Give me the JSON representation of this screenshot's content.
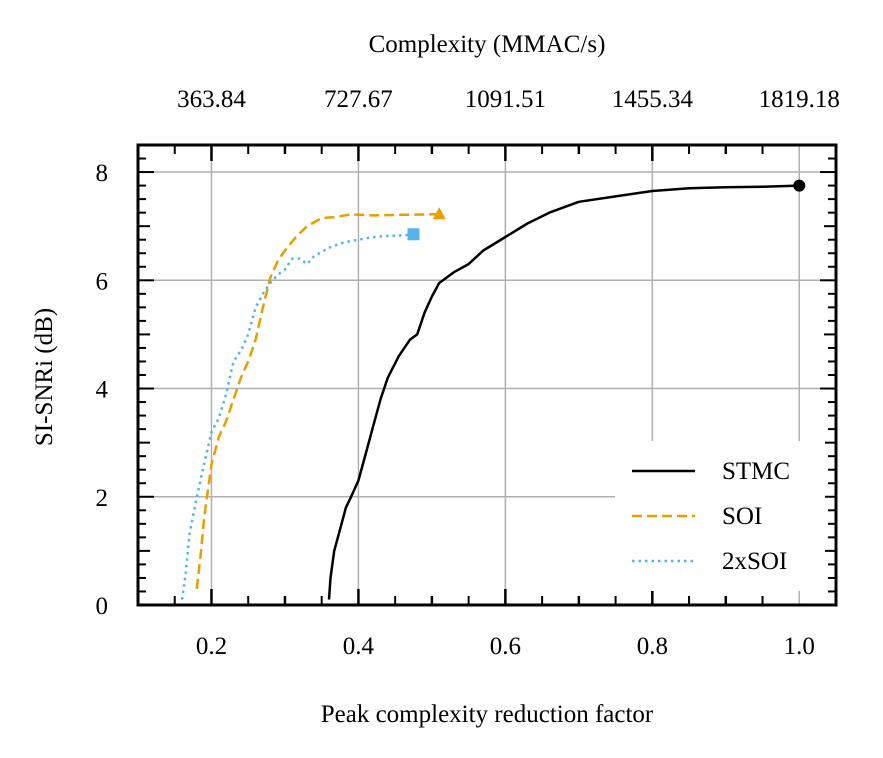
{
  "chart_data": {
    "type": "line",
    "xlabel": "Peak complexity reduction factor",
    "ylabel": "SI-SNRi (dB)",
    "top_xlabel": "Complexity (MMAC/s)",
    "xlim": [
      0.1,
      1.05
    ],
    "ylim": [
      0,
      8.5
    ],
    "x_ticks": [
      0.2,
      0.4,
      0.6,
      0.8,
      1.0
    ],
    "x_tick_labels": [
      "0.2",
      "0.4",
      "0.6",
      "0.8",
      "1.0"
    ],
    "y_ticks": [
      0,
      2,
      4,
      6,
      8
    ],
    "y_tick_labels": [
      "0",
      "2",
      "4",
      "6",
      "8"
    ],
    "top_ticks": [
      0.2,
      0.4,
      0.6,
      0.8,
      1.0
    ],
    "top_tick_labels": [
      "363.84",
      "727.67",
      "1091.51",
      "1455.34",
      "1819.18"
    ],
    "grid": true,
    "legend_position": "bottom-right",
    "series": [
      {
        "name": "STMC",
        "color": "#000000",
        "dash": "solid",
        "marker": "circle",
        "points": [
          [
            0.36,
            0.1
          ],
          [
            0.362,
            0.5
          ],
          [
            0.367,
            1.0
          ],
          [
            0.375,
            1.4
          ],
          [
            0.383,
            1.8
          ],
          [
            0.39,
            2.0
          ],
          [
            0.4,
            2.3
          ],
          [
            0.41,
            2.8
          ],
          [
            0.42,
            3.3
          ],
          [
            0.43,
            3.8
          ],
          [
            0.44,
            4.2
          ],
          [
            0.455,
            4.6
          ],
          [
            0.47,
            4.9
          ],
          [
            0.48,
            5.0
          ],
          [
            0.49,
            5.4
          ],
          [
            0.5,
            5.7
          ],
          [
            0.51,
            5.95
          ],
          [
            0.53,
            6.15
          ],
          [
            0.55,
            6.3
          ],
          [
            0.57,
            6.55
          ],
          [
            0.6,
            6.8
          ],
          [
            0.63,
            7.05
          ],
          [
            0.66,
            7.25
          ],
          [
            0.7,
            7.45
          ],
          [
            0.75,
            7.55
          ],
          [
            0.8,
            7.65
          ],
          [
            0.85,
            7.7
          ],
          [
            0.9,
            7.72
          ],
          [
            0.95,
            7.73
          ],
          [
            1.0,
            7.75
          ]
        ]
      },
      {
        "name": "SOI",
        "color": "#e69f00",
        "dash": "dashed",
        "marker": "triangle",
        "points": [
          [
            0.18,
            0.3
          ],
          [
            0.185,
            0.9
          ],
          [
            0.19,
            1.6
          ],
          [
            0.2,
            2.6
          ],
          [
            0.21,
            3.1
          ],
          [
            0.22,
            3.4
          ],
          [
            0.23,
            3.8
          ],
          [
            0.24,
            4.2
          ],
          [
            0.25,
            4.5
          ],
          [
            0.26,
            4.9
          ],
          [
            0.27,
            5.5
          ],
          [
            0.28,
            6.05
          ],
          [
            0.29,
            6.35
          ],
          [
            0.3,
            6.55
          ],
          [
            0.315,
            6.8
          ],
          [
            0.33,
            7.0
          ],
          [
            0.35,
            7.15
          ],
          [
            0.37,
            7.17
          ],
          [
            0.39,
            7.22
          ],
          [
            0.42,
            7.2
          ],
          [
            0.46,
            7.21
          ],
          [
            0.51,
            7.22
          ]
        ]
      },
      {
        "name": "2xSOI",
        "color": "#56b4e9",
        "dash": "dotted",
        "marker": "square",
        "points": [
          [
            0.16,
            0.1
          ],
          [
            0.165,
            0.6
          ],
          [
            0.17,
            1.3
          ],
          [
            0.18,
            2.0
          ],
          [
            0.19,
            2.6
          ],
          [
            0.2,
            3.2
          ],
          [
            0.21,
            3.45
          ],
          [
            0.22,
            3.9
          ],
          [
            0.23,
            4.5
          ],
          [
            0.24,
            4.7
          ],
          [
            0.25,
            5.0
          ],
          [
            0.26,
            5.5
          ],
          [
            0.27,
            5.75
          ],
          [
            0.28,
            5.95
          ],
          [
            0.29,
            6.1
          ],
          [
            0.3,
            6.2
          ],
          [
            0.31,
            6.4
          ],
          [
            0.32,
            6.4
          ],
          [
            0.33,
            6.3
          ],
          [
            0.34,
            6.45
          ],
          [
            0.36,
            6.6
          ],
          [
            0.38,
            6.7
          ],
          [
            0.4,
            6.75
          ],
          [
            0.42,
            6.8
          ],
          [
            0.44,
            6.82
          ],
          [
            0.46,
            6.83
          ],
          [
            0.475,
            6.85
          ]
        ]
      }
    ]
  }
}
